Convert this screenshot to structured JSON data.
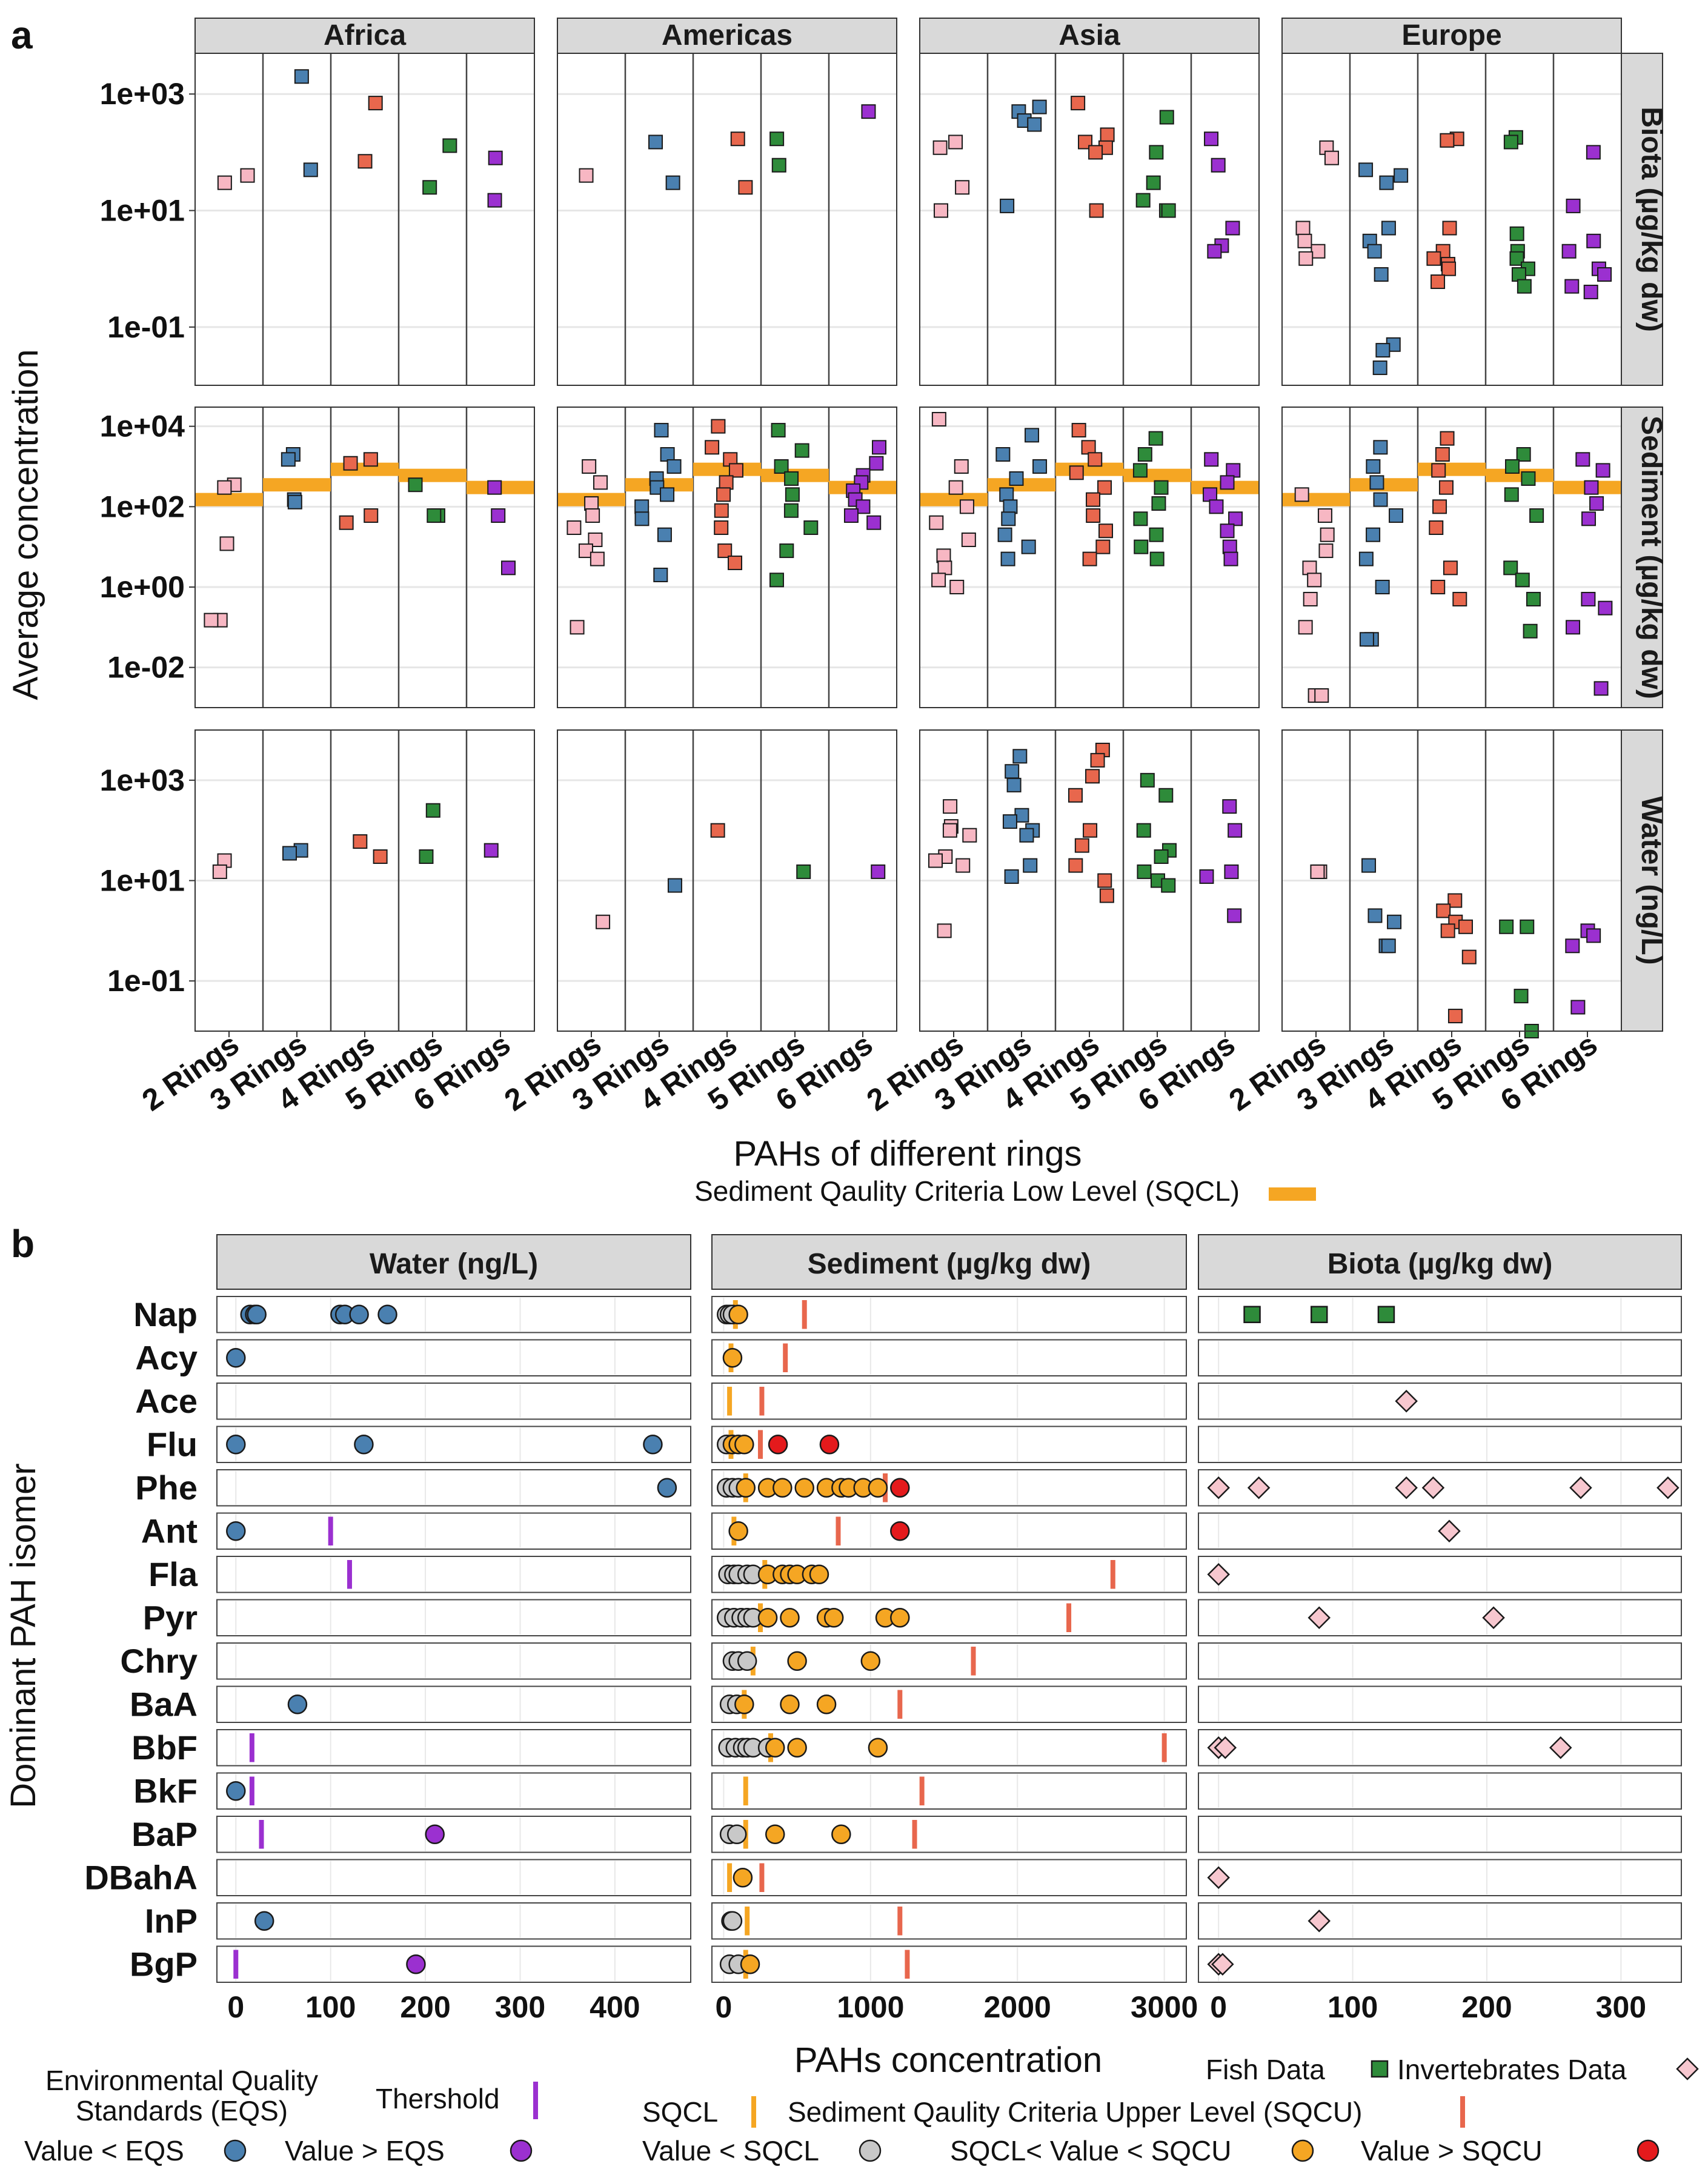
{
  "chart_data": [
    {
      "panel": "a",
      "type": "scatter",
      "y_scale": "log10",
      "ylabel": "Average concentration",
      "xlabel": "PAHs of different rings",
      "regions": [
        "Africa",
        "Americas",
        "Asia",
        "Europe"
      ],
      "categories": [
        "2 Rings",
        "3 Rings",
        "4 Rings",
        "5 Rings",
        "6 Rings"
      ],
      "category_colors": [
        "#f7b7c3",
        "#4a80b0",
        "#e8674d",
        "#2e8b3a",
        "#9b30d0"
      ],
      "threshold_legend": "Sediment Qaulity Criteria Low Level (SQCL)",
      "threshold_color": "#f5a623",
      "matrices": [
        {
          "name": "Biota (µg/kg dw)",
          "ylim": [
            0.01,
            5000
          ],
          "ticks": [
            "1e-01",
            "1e+01",
            "1e+03"
          ],
          "points": {
            "Africa": [
              [
                30,
                40
              ],
              [
                2000,
                50
              ],
              [
                70,
                700
              ],
              [
                130,
                25
              ],
              [
                80,
                15
              ]
            ],
            "Americas": [
              [
                40
              ],
              [
                150,
                30
              ],
              [
                170,
                25
              ],
              [
                170,
                60
              ],
              [
                500
              ]
            ],
            "Asia": [
              [
                150,
                120,
                25,
                10
              ],
              [
                600,
                500,
                350,
                300,
                12
              ],
              [
                700,
                200,
                150,
                120,
                100,
                10
              ],
              [
                400,
                100,
                30,
                15,
                10,
                10
              ],
              [
                170,
                60,
                5,
                2.5,
                2
              ]
            ],
            "Europe": [
              [
                120,
                80,
                5,
                3,
                2,
                1.5
              ],
              [
                50,
                40,
                30,
                5,
                3,
                2,
                0.8,
                0.05,
                0.04,
                0.02
              ],
              [
                170,
                160,
                5,
                2,
                1.5,
                1.2,
                1,
                0.6
              ],
              [
                180,
                150,
                4,
                2,
                1.5,
                1,
                0.8,
                0.5
              ],
              [
                100,
                12,
                3,
                2,
                1,
                0.8,
                0.5,
                0.4
              ]
            ]
          },
          "sqcl": null
        },
        {
          "name": "Sediment (µg/kg dw)",
          "ylim": [
            0.001,
            30000
          ],
          "ticks": [
            "1e-02",
            "1e+00",
            "1e+02",
            "1e+04"
          ],
          "points": {
            "Africa": [
              [
                350,
                300,
                12,
                0.15,
                0.15
              ],
              [
                2000,
                1500,
                150,
                130
              ],
              [
                1500,
                1200,
                60,
                40
              ],
              [
                350,
                60,
                60
              ],
              [
                300,
                60,
                3
              ]
            ],
            "Americas": [
              [
                1000,
                400,
                120,
                60,
                30,
                15,
                8,
                5,
                0.1
              ],
              [
                8000,
                2000,
                1000,
                500,
                300,
                200,
                100,
                50,
                20,
                2
              ],
              [
                10000,
                3000,
                1500,
                800,
                400,
                200,
                80,
                30,
                8,
                4
              ],
              [
                8000,
                2500,
                1000,
                500,
                200,
                80,
                30,
                8,
                1.5
              ],
              [
                3000,
                1200,
                600,
                400,
                250,
                150,
                100,
                60,
                40
              ]
            ],
            "Asia": [
              [
                15000,
                1000,
                300,
                100,
                40,
                15,
                6,
                3,
                1.5,
                1
              ],
              [
                6000,
                2000,
                1000,
                500,
                200,
                100,
                50,
                20,
                10,
                5
              ],
              [
                8000,
                3000,
                1500,
                700,
                300,
                150,
                60,
                25,
                10,
                5
              ],
              [
                5000,
                2000,
                800,
                300,
                120,
                50,
                20,
                10,
                5
              ],
              [
                1500,
                800,
                400,
                200,
                100,
                50,
                25,
                10,
                5
              ]
            ],
            "Europe": [
              [
                200,
                60,
                20,
                8,
                3,
                1.5,
                0.5,
                0.1,
                0.002,
                0.002
              ],
              [
                3000,
                1000,
                400,
                150,
                60,
                20,
                5,
                1,
                0.05,
                0.05
              ],
              [
                5000,
                2000,
                800,
                300,
                100,
                30,
                3,
                1,
                0.5
              ],
              [
                2000,
                1000,
                500,
                200,
                60,
                3,
                1.5,
                0.5,
                0.08
              ],
              [
                1500,
                800,
                300,
                120,
                50,
                0.5,
                0.3,
                0.1,
                0.003
              ]
            ]
          },
          "sqcl": [
            150,
            350,
            850,
            600,
            300
          ]
        },
        {
          "name": "Water (ng/L)",
          "ylim": [
            0.01,
            10000
          ],
          "ticks": [
            "1e-01",
            "1e+01",
            "1e+03"
          ],
          "points": {
            "Africa": [
              [
                25,
                15
              ],
              [
                40,
                35
              ],
              [
                60,
                30
              ],
              [
                250,
                30
              ],
              [
                40
              ]
            ],
            "Americas": [
              [
                1.5
              ],
              [
                8
              ],
              [
                100
              ],
              [
                15
              ],
              [
                15
              ]
            ],
            "Asia": [
              [
                300,
                120,
                100,
                80,
                30,
                25,
                20,
                1
              ],
              [
                3000,
                1500,
                800,
                200,
                150,
                100,
                80,
                20,
                12
              ],
              [
                4000,
                2500,
                1200,
                500,
                100,
                50,
                20,
                10,
                5
              ],
              [
                1000,
                500,
                100,
                40,
                30,
                15,
                10,
                8
              ],
              [
                300,
                100,
                15,
                12,
                2
              ]
            ],
            "Europe": [
              [
                15,
                15
              ],
              [
                20,
                2,
                1.5,
                0.5,
                0.5
              ],
              [
                4,
                2.5,
                1.5,
                1.2,
                1,
                0.3,
                0.02
              ],
              [
                1.2,
                1.2,
                0.05,
                0.01
              ],
              [
                1,
                0.8,
                0.5,
                0.03
              ]
            ]
          },
          "sqcl": null
        }
      ]
    },
    {
      "panel": "b",
      "type": "scatter",
      "ylabel": "Dominant PAH isomer",
      "xlabel": "PAHs concentration",
      "isomers": [
        "Nap",
        "Acy",
        "Ace",
        "Flu",
        "Phe",
        "Ant",
        "Fla",
        "Pyr",
        "Chry",
        "BaA",
        "BbF",
        "BkF",
        "BaP",
        "DBahA",
        "InP",
        "BgP"
      ],
      "water": {
        "title": "Water (ng/L)",
        "xlim": [
          -20,
          480
        ],
        "ticks": [
          0,
          100,
          200,
          300,
          400
        ],
        "eqs": {
          "Ant": 100,
          "Fla": 120,
          "BbF": 17,
          "BkF": 17,
          "BaP": 27,
          "BgP": 0
        },
        "points": {
          "Nap": [
            15,
            20,
            22,
            110,
            115,
            130,
            160
          ],
          "Acy": [
            0
          ],
          "Flu": [
            0,
            135,
            440
          ],
          "Phe": [
            455
          ],
          "Ant": [
            0
          ],
          "BaA": [
            65
          ],
          "BkF": [
            0
          ],
          "BaP": [
            210
          ],
          "InP": [
            30
          ],
          "BgP": [
            190
          ]
        }
      },
      "sediment": {
        "title": "Sediment (µg/kg dw)",
        "xlim": [
          -80,
          3150
        ],
        "ticks": [
          0,
          1000,
          2000,
          3000
        ],
        "sqcl": {
          "Nap": 80,
          "Acy": 50,
          "Ace": 40,
          "Flu": 50,
          "Phe": 150,
          "Ant": 70,
          "Fla": 280,
          "Pyr": 250,
          "Chry": 200,
          "BaA": 140,
          "BbF": 320,
          "BkF": 150,
          "BaP": 150,
          "DBahA": 40,
          "InP": 160,
          "BgP": 150
        },
        "sqcu": {
          "Nap": 550,
          "Acy": 420,
          "Ace": 260,
          "Flu": 250,
          "Phe": 1100,
          "Ant": 780,
          "Fla": 2650,
          "Pyr": 2350,
          "Chry": 1700,
          "BaA": 1200,
          "BbF": 3000,
          "BkF": 1350,
          "BaP": 1300,
          "DBahA": 260,
          "InP": 1200,
          "BgP": 1250
        },
        "points": {
          "Nap": [
            20,
            40,
            60,
            100
          ],
          "Acy": [
            60
          ],
          "Ace": [],
          "Flu": [
            20,
            60,
            100,
            140,
            370,
            720
          ],
          "Phe": [
            20,
            60,
            100,
            150,
            300,
            400,
            550,
            700,
            800,
            850,
            950,
            1050,
            1200
          ],
          "Ant": [
            100,
            1200
          ],
          "Fla": [
            30,
            70,
            100,
            160,
            200,
            300,
            400,
            450,
            500,
            600,
            650
          ],
          "Pyr": [
            20,
            70,
            120,
            160,
            200,
            300,
            450,
            700,
            750,
            1100,
            1200
          ],
          "Chry": [
            60,
            100,
            160,
            500,
            1000
          ],
          "BaA": [
            40,
            90,
            140,
            450,
            700
          ],
          "BbF": [
            30,
            80,
            130,
            160,
            200,
            300,
            350,
            500,
            1050
          ],
          "BkF": [],
          "BaP": [
            40,
            90,
            350,
            800
          ],
          "DBahA": [
            130
          ],
          "InP": [
            50,
            60
          ],
          "BgP": [
            40,
            100,
            180
          ]
        }
      },
      "biota": {
        "title": "Biota (µg/kg dw)",
        "xlim": [
          -15,
          345
        ],
        "ticks": [
          0,
          100,
          200,
          300
        ],
        "fish": {
          "Nap": [
            25,
            75,
            125
          ]
        },
        "invertebrates": {
          "Ace": [
            140
          ],
          "Phe": [
            0,
            30,
            140,
            160,
            270,
            335
          ],
          "Ant": [
            172
          ],
          "Fla": [
            0
          ],
          "Pyr": [
            75,
            205
          ],
          "BbF": [
            0,
            5,
            255
          ],
          "DBahA": [
            0
          ],
          "InP": [
            75
          ],
          "BgP": [
            0,
            3
          ]
        }
      }
    }
  ],
  "legend": {
    "panel_a_sqcl": "Sediment Qaulity Criteria Low Level (SQCL)",
    "eqs_line1": "Environmental Quality",
    "eqs_line2": "Standards (EQS)",
    "threshold": "Thershold",
    "value_lt_eqs": "Value < EQS",
    "value_gt_eqs": "Value > EQS",
    "fish_data": "Fish Data",
    "invertebrates_data": "Invertebrates Data",
    "sqcl": "SQCL",
    "sqcu": "Sediment Qaulity Criteria Upper Level (SQCU)",
    "value_lt_sqcl": "Value < SQCL",
    "value_between": "SQCL< Value < SQCU",
    "value_gt_sqcu": "Value > SQCU"
  },
  "labels": {
    "panel_a": "a",
    "panel_b": "b"
  },
  "colors": {
    "eqs_below": "#4a80b0",
    "eqs_above": "#9b30d0",
    "eqs_line": "#9b30d0",
    "sqcl_line": "#f5a623",
    "sqcu_line": "#e8674d",
    "sed_below": "#c8c8c8",
    "sed_between": "#f5a623",
    "sed_above": "#e41a1c",
    "fish": "#2e8b3a",
    "invert": "#f7c7cf"
  }
}
